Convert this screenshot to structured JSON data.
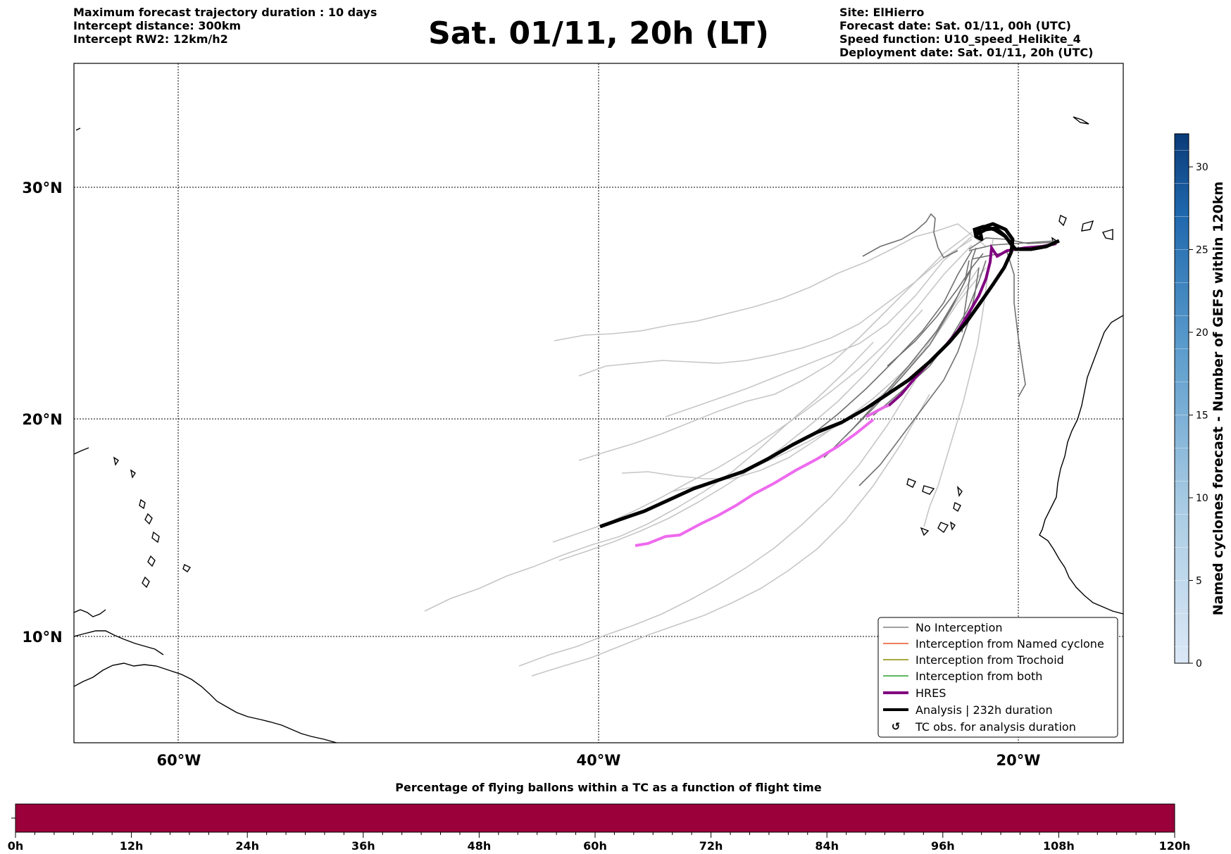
{
  "header": {
    "left_lines": [
      "Maximum forecast trajectory duration : 10 days",
      "Intercept distance: 300km",
      "Intercept RW2: 12km/h2"
    ],
    "title": "Sat. 01/11, 20h (LT)",
    "right_lines": [
      "Site: ElHierro",
      "Forecast date: Sat. 01/11, 00h (UTC)",
      "Speed function: U10_speed_Helikite_4",
      "Deployment date: Sat. 01/11, 20h (UTC)"
    ]
  },
  "map": {
    "lat_labels": [
      "30°N",
      "20°N",
      "10°N"
    ],
    "lon_labels": [
      "60°W",
      "40°W",
      "20°W"
    ],
    "extent": {
      "lon_min": -65,
      "lon_max": -15,
      "lat_min": 5.2,
      "lat_max": 34.5
    }
  },
  "legend": {
    "items": [
      {
        "label": "No Interception",
        "color": "#808080",
        "style": "thin"
      },
      {
        "label": "Interception from Named cyclone",
        "color": "#e8532a",
        "style": "thin"
      },
      {
        "label": "Interception from Trochoid",
        "color": "#8b8b00",
        "style": "thin"
      },
      {
        "label": "Interception from both",
        "color": "#2ca02c",
        "style": "thin"
      },
      {
        "label": "HRES",
        "color": "#800080",
        "style": "thick"
      },
      {
        "label": "Analysis | 232h duration",
        "color": "#000000",
        "style": "thick"
      },
      {
        "label": "TC obs. for analysis duration",
        "color": "#000000",
        "style": "symbol"
      }
    ]
  },
  "colorbar": {
    "label": "Named cyclones forecast - Number of GEFS within 120km",
    "ticks": [
      "0",
      "5",
      "10",
      "15",
      "20",
      "25",
      "30"
    ],
    "max": 32
  },
  "bottom_bar": {
    "title": "Percentage of flying ballons within a TC as a function of flight time",
    "ticks": [
      "0h",
      "12h",
      "24h",
      "36h",
      "48h",
      "60h",
      "72h",
      "84h",
      "96h",
      "108h",
      "120h"
    ],
    "fill_color": "#9b003a"
  }
}
